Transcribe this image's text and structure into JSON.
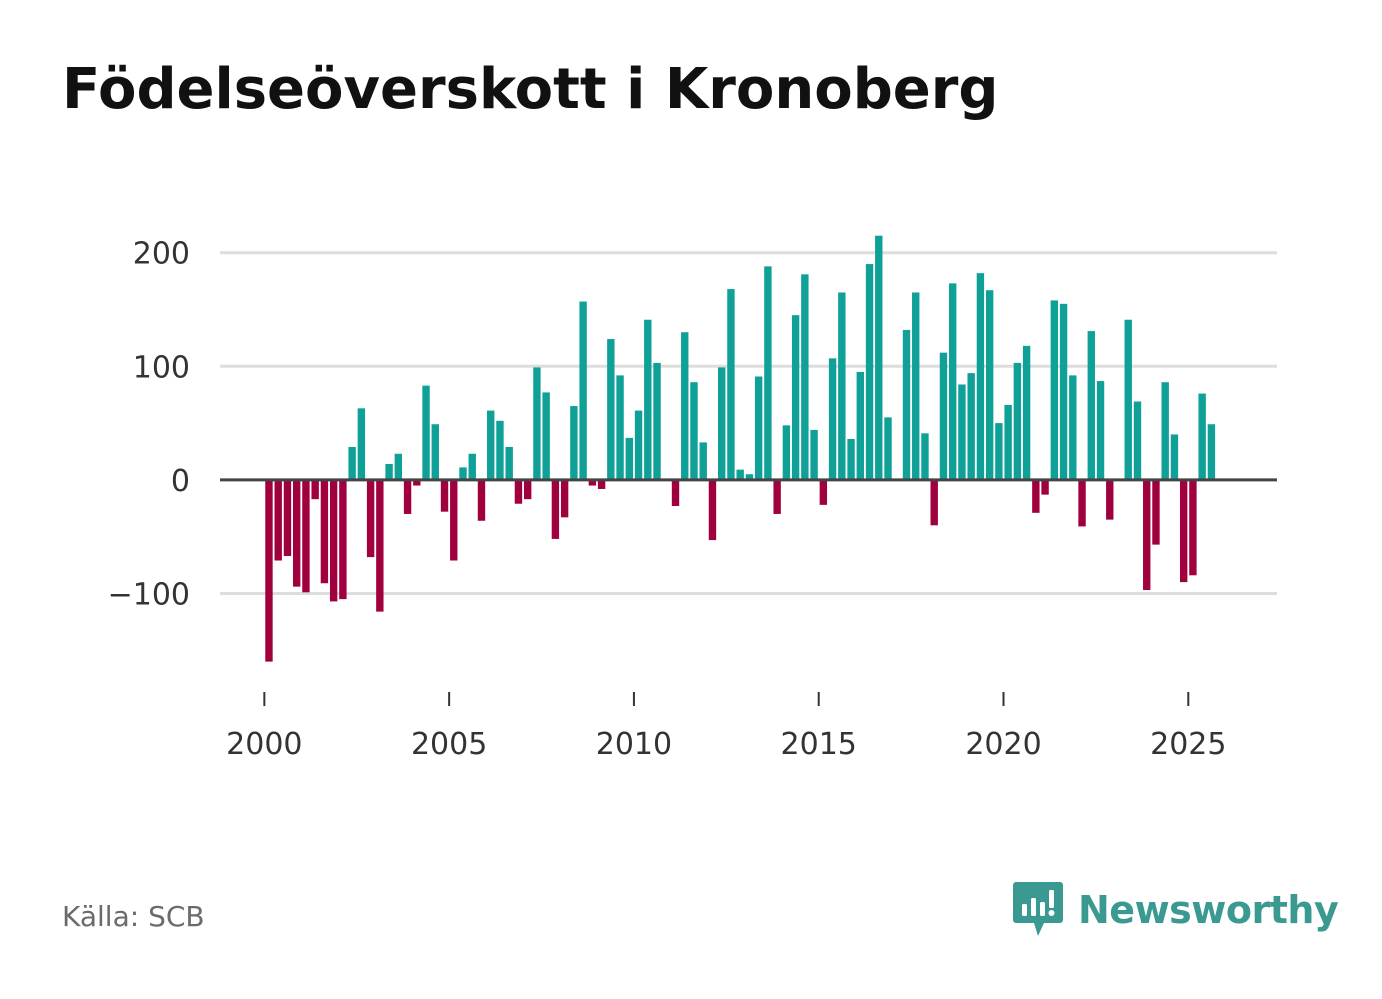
{
  "title": "Födelseöverskott i Kronoberg",
  "source": "Källa: SCB",
  "brand": {
    "name": "Newsworthy",
    "icon": "newsworthy-logo-icon"
  },
  "colors": {
    "positive": "#0fa197",
    "negative": "#a1003f",
    "grid": "#dddddd",
    "zero": "#444444",
    "brand": "#3a9a92"
  },
  "chart_data": {
    "type": "bar",
    "title": "Födelseöverskott i Kronoberg",
    "xlabel": "",
    "ylabel": "",
    "ylim": [
      -185,
      220
    ],
    "yticks": [
      -100,
      0,
      100,
      200
    ],
    "ytick_labels": [
      "−100",
      "0",
      "100",
      "200"
    ],
    "xlim": [
      1998.8,
      2027.4
    ],
    "xticks": [
      2000,
      2005,
      2010,
      2015,
      2020,
      2025
    ],
    "xtick_labels": [
      "2000",
      "2005",
      "2010",
      "2015",
      "2020",
      "2025"
    ],
    "period": "quarterly",
    "start": 2000.125,
    "step": 0.25,
    "values": [
      -160,
      -71,
      -67,
      -94,
      -99,
      -17,
      -91,
      -107,
      -105,
      29,
      63,
      -68,
      -116,
      14,
      23,
      -30,
      -5,
      83,
      49,
      -28,
      -71,
      11,
      23,
      -36,
      61,
      52,
      29,
      -21,
      -17,
      99,
      77,
      -52,
      -33,
      65,
      157,
      -5,
      -8,
      124,
      92,
      37,
      61,
      141,
      103,
      0,
      -23,
      130,
      86,
      33,
      -53,
      99,
      168,
      9,
      5,
      91,
      188,
      -30,
      48,
      145,
      181,
      44,
      -22,
      107,
      165,
      36,
      95,
      190,
      215,
      55,
      0,
      132,
      165,
      41,
      -40,
      112,
      173,
      84,
      94,
      182,
      167,
      50,
      66,
      103,
      118,
      -29,
      -13,
      158,
      155,
      92,
      -41,
      131,
      87,
      -35,
      0,
      141,
      69,
      -97,
      -57,
      86,
      40,
      -90,
      -84,
      76,
      49
    ]
  }
}
